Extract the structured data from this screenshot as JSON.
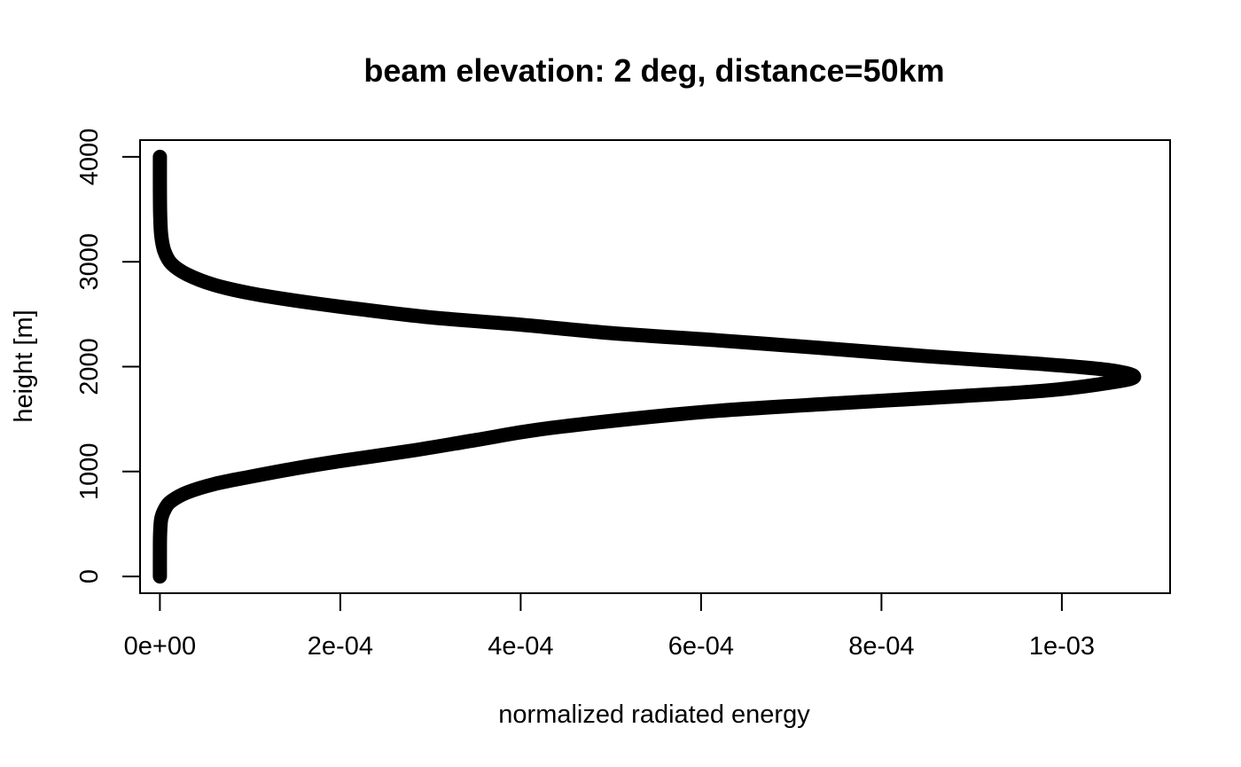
{
  "chart_data": {
    "type": "line",
    "title": "beam elevation: 2 deg, distance=50km",
    "xlabel": "normalized radiated energy",
    "ylabel": "height [m]",
    "xlim": [
      -2.2e-05,
      0.00112
    ],
    "ylim": [
      -160,
      4160
    ],
    "x_ticks": [
      {
        "value": 0,
        "label": "0e+00"
      },
      {
        "value": 0.0002,
        "label": "2e-04"
      },
      {
        "value": 0.0004,
        "label": "4e-04"
      },
      {
        "value": 0.0006,
        "label": "6e-04"
      },
      {
        "value": 0.0008,
        "label": "8e-04"
      },
      {
        "value": 0.001,
        "label": "1e-03"
      }
    ],
    "y_ticks": [
      {
        "value": 0,
        "label": "0"
      },
      {
        "value": 1000,
        "label": "1000"
      },
      {
        "value": 2000,
        "label": "2000"
      },
      {
        "value": 3000,
        "label": "3000"
      },
      {
        "value": 4000,
        "label": "4000"
      }
    ],
    "grid": false,
    "series": [
      {
        "color": "#000000",
        "points": [
          {
            "x": 0.0,
            "y": 0
          },
          {
            "x": 0.0,
            "y": 200
          },
          {
            "x": 2e-07,
            "y": 400
          },
          {
            "x": 1.5e-06,
            "y": 550
          },
          {
            "x": 6e-06,
            "y": 650
          },
          {
            "x": 1.3e-05,
            "y": 720
          },
          {
            "x": 3e-05,
            "y": 800
          },
          {
            "x": 6e-05,
            "y": 880
          },
          {
            "x": 0.0001,
            "y": 950
          },
          {
            "x": 0.00015,
            "y": 1030
          },
          {
            "x": 0.0002,
            "y": 1100
          },
          {
            "x": 0.00028,
            "y": 1200
          },
          {
            "x": 0.00035,
            "y": 1300
          },
          {
            "x": 0.00042,
            "y": 1400
          },
          {
            "x": 0.00052,
            "y": 1500
          },
          {
            "x": 0.00062,
            "y": 1580
          },
          {
            "x": 0.00075,
            "y": 1650
          },
          {
            "x": 0.00089,
            "y": 1720
          },
          {
            "x": 0.00098,
            "y": 1770
          },
          {
            "x": 0.00104,
            "y": 1830
          },
          {
            "x": 0.00108,
            "y": 1900
          },
          {
            "x": 0.00105,
            "y": 1970
          },
          {
            "x": 0.00097,
            "y": 2030
          },
          {
            "x": 0.00085,
            "y": 2100
          },
          {
            "x": 0.00073,
            "y": 2180
          },
          {
            "x": 0.00062,
            "y": 2250
          },
          {
            "x": 0.0005,
            "y": 2320
          },
          {
            "x": 0.0004,
            "y": 2400
          },
          {
            "x": 0.0003,
            "y": 2470
          },
          {
            "x": 0.00022,
            "y": 2550
          },
          {
            "x": 0.00015,
            "y": 2630
          },
          {
            "x": 0.0001,
            "y": 2700
          },
          {
            "x": 6e-05,
            "y": 2780
          },
          {
            "x": 3e-05,
            "y": 2880
          },
          {
            "x": 1.3e-05,
            "y": 2980
          },
          {
            "x": 5e-06,
            "y": 3100
          },
          {
            "x": 1.5e-06,
            "y": 3250
          },
          {
            "x": 3e-07,
            "y": 3450
          },
          {
            "x": 0.0,
            "y": 3700
          },
          {
            "x": 0.0,
            "y": 4000
          }
        ]
      }
    ]
  }
}
